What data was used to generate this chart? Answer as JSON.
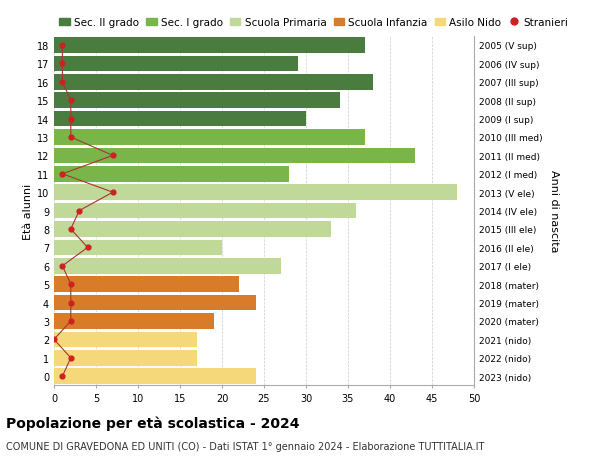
{
  "ages": [
    18,
    17,
    16,
    15,
    14,
    13,
    12,
    11,
    10,
    9,
    8,
    7,
    6,
    5,
    4,
    3,
    2,
    1,
    0
  ],
  "anni_nascita": [
    "2005 (V sup)",
    "2006 (IV sup)",
    "2007 (III sup)",
    "2008 (II sup)",
    "2009 (I sup)",
    "2010 (III med)",
    "2011 (II med)",
    "2012 (I med)",
    "2013 (V ele)",
    "2014 (IV ele)",
    "2015 (III ele)",
    "2016 (II ele)",
    "2017 (I ele)",
    "2018 (mater)",
    "2019 (mater)",
    "2020 (mater)",
    "2021 (nido)",
    "2022 (nido)",
    "2023 (nido)"
  ],
  "bar_values": [
    37,
    29,
    38,
    34,
    30,
    37,
    43,
    28,
    48,
    36,
    33,
    20,
    27,
    22,
    24,
    19,
    17,
    17,
    24
  ],
  "bar_colors": [
    "#4a7c40",
    "#4a7c40",
    "#4a7c40",
    "#4a7c40",
    "#4a7c40",
    "#7ab54a",
    "#7ab54a",
    "#7ab54a",
    "#c0d898",
    "#c0d898",
    "#c0d898",
    "#c0d898",
    "#c0d898",
    "#d97c2a",
    "#d97c2a",
    "#d97c2a",
    "#f5d87a",
    "#f5d87a",
    "#f5d87a"
  ],
  "stranieri_values": [
    1,
    1,
    1,
    2,
    2,
    2,
    7,
    1,
    7,
    3,
    2,
    4,
    1,
    2,
    2,
    2,
    0,
    2,
    1
  ],
  "title": "Popolazione per età scolastica - 2024",
  "subtitle": "COMUNE DI GRAVEDONA ED UNITI (CO) - Dati ISTAT 1° gennaio 2024 - Elaborazione TUTTITALIA.IT",
  "ylabel_left": "Età alunni",
  "ylabel_right": "Anni di nascita",
  "xlim": [
    0,
    50
  ],
  "xticks": [
    0,
    5,
    10,
    15,
    20,
    25,
    30,
    35,
    40,
    45,
    50
  ],
  "legend_labels": [
    "Sec. II grado",
    "Sec. I grado",
    "Scuola Primaria",
    "Scuola Infanzia",
    "Asilo Nido",
    "Stranieri"
  ],
  "legend_colors": [
    "#4a7c40",
    "#7ab54a",
    "#c0d898",
    "#d97c2a",
    "#f5d87a",
    "#cc2222"
  ],
  "line_color": "#aa3333",
  "dot_color": "#cc2222",
  "background_color": "#ffffff",
  "grid_color": "#cccccc",
  "title_fontsize": 10,
  "subtitle_fontsize": 7,
  "tick_fontsize": 7,
  "legend_fontsize": 7.5,
  "ylabel_fontsize": 8
}
